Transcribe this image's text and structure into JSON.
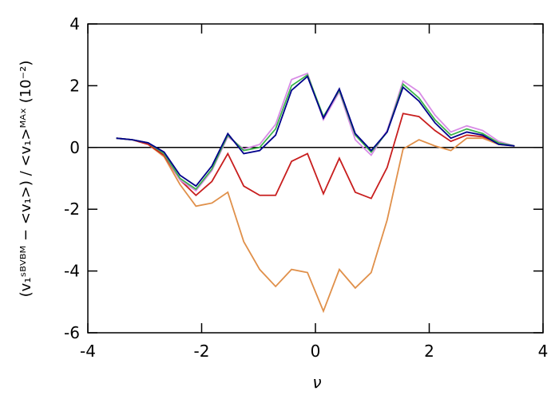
{
  "chart_data": {
    "type": "line",
    "xlabel": "ν",
    "ylabel": "(v₁ˢᴮⱽᴮᴹ − <v₁>) / <v₁>ᴹᴬˣ (10⁻²)",
    "x": [
      -3.5,
      -3.22,
      -2.94,
      -2.66,
      -2.38,
      -2.1,
      -1.82,
      -1.54,
      -1.26,
      -0.98,
      -0.7,
      -0.42,
      -0.14,
      0.14,
      0.42,
      0.7,
      0.98,
      1.26,
      1.54,
      1.82,
      2.1,
      2.38,
      2.66,
      2.94,
      3.22,
      3.5
    ],
    "series": [
      {
        "color": "#e0904a",
        "values": [
          0.3,
          0.25,
          0.1,
          -0.3,
          -1.2,
          -1.9,
          -1.8,
          -1.45,
          -3.05,
          -3.95,
          -4.5,
          -3.95,
          -4.05,
          -5.3,
          -3.95,
          -4.55,
          -4.05,
          -2.35,
          -0.05,
          0.25,
          0.05,
          -0.1,
          0.3,
          0.3,
          0.1,
          0.05
        ]
      },
      {
        "color": "#c81e1e",
        "values": [
          0.3,
          0.25,
          0.1,
          -0.25,
          -1.05,
          -1.55,
          -1.1,
          -0.2,
          -1.25,
          -1.55,
          -1.55,
          -0.45,
          -0.2,
          -1.5,
          -0.35,
          -1.45,
          -1.65,
          -0.65,
          1.1,
          1.0,
          0.55,
          0.2,
          0.4,
          0.35,
          0.15,
          0.05
        ]
      },
      {
        "color": "#d88be6",
        "values": [
          0.3,
          0.25,
          0.15,
          -0.2,
          -1.05,
          -1.4,
          -0.75,
          0.35,
          -0.05,
          0.1,
          0.75,
          2.2,
          2.4,
          0.9,
          1.8,
          0.25,
          -0.25,
          0.55,
          2.15,
          1.8,
          1.05,
          0.5,
          0.7,
          0.55,
          0.2,
          0.05
        ]
      },
      {
        "color": "#3cb44b",
        "values": [
          0.3,
          0.25,
          0.15,
          -0.2,
          -1.0,
          -1.35,
          -0.7,
          0.4,
          -0.1,
          0.0,
          0.6,
          2.0,
          2.35,
          1.0,
          1.85,
          0.4,
          -0.15,
          0.5,
          2.05,
          1.6,
          0.9,
          0.4,
          0.6,
          0.45,
          0.15,
          0.05
        ]
      },
      {
        "color": "#00008b",
        "values": [
          0.3,
          0.25,
          0.15,
          -0.15,
          -0.9,
          -1.25,
          -0.6,
          0.45,
          -0.2,
          -0.1,
          0.4,
          1.85,
          2.3,
          0.95,
          1.9,
          0.45,
          -0.1,
          0.5,
          1.95,
          1.5,
          0.8,
          0.3,
          0.5,
          0.4,
          0.1,
          0.05
        ]
      }
    ],
    "reference_line": 0,
    "xlim": [
      -4,
      4
    ],
    "xticks": [
      -4,
      -2,
      0,
      2,
      4
    ],
    "ylim": [
      -6,
      4
    ],
    "yticks": [
      -6,
      -4,
      -2,
      0,
      2,
      4
    ],
    "grid": false
  }
}
